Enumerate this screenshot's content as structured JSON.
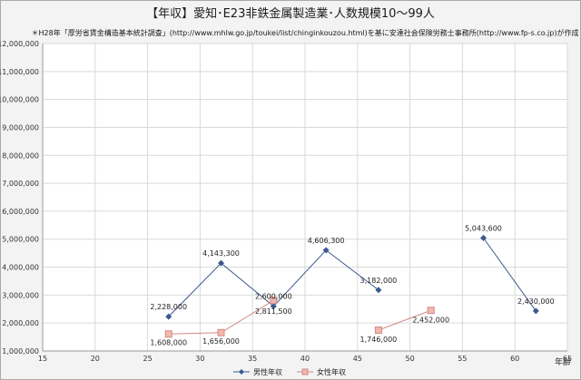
{
  "chart_data": {
    "type": "line",
    "title": "【年収】愛知･E23非鉄金属製造業･人数規模10～99人",
    "subtitle": "＊H28年「厚労省賃金構造基本統計調査」(http://www.mhlw.go.jp/toukei/list/chinginkouzou.html)を基に安達社会保険労務士事務所(http://www.fp-s.co.jp)が作成",
    "xlabel": "年齢",
    "ylabel": "",
    "xlim": [
      15,
      65
    ],
    "ylim": [
      1000000,
      12000000
    ],
    "x_ticks": [
      15,
      20,
      25,
      30,
      35,
      40,
      45,
      50,
      55,
      60,
      65
    ],
    "y_ticks": [
      1000000,
      2000000,
      3000000,
      4000000,
      5000000,
      6000000,
      7000000,
      8000000,
      9000000,
      10000000,
      11000000,
      12000000
    ],
    "y_tick_labels": [
      "1,000,000",
      "2,000,000",
      "3,000,000",
      "4,000,000",
      "5,000,000",
      "6,000,000",
      "7,000,000",
      "8,000,000",
      "9,000,000",
      "10,000,000",
      "11,000,000",
      "12,000,000"
    ],
    "grid": true,
    "legend_position": "bottom",
    "series": [
      {
        "name": "男性年収",
        "color": "#3a5a8c",
        "marker": "diamond",
        "segments": [
          [
            {
              "x": 27,
              "y": 2228000,
              "label": "2,228,000"
            },
            {
              "x": 32,
              "y": 4143300,
              "label": "4,143,300"
            },
            {
              "x": 37,
              "y": 2600000,
              "label": "2,600,000"
            },
            {
              "x": 42,
              "y": 4606300,
              "label": "4,606,300"
            },
            {
              "x": 47,
              "y": 3182000,
              "label": "3,182,000"
            }
          ],
          [
            {
              "x": 57,
              "y": 5043600,
              "label": "5,043,600"
            },
            {
              "x": 62,
              "y": 2430000,
              "label": "2,430,000"
            }
          ]
        ]
      },
      {
        "name": "女性年収",
        "color": "#d08a86",
        "marker": "square",
        "segments": [
          [
            {
              "x": 27,
              "y": 1608000,
              "label": "1,608,000"
            },
            {
              "x": 32,
              "y": 1656000,
              "label": "1,656,000"
            },
            {
              "x": 37,
              "y": 2811500,
              "label": "2,811,500"
            }
          ],
          [
            {
              "x": 47,
              "y": 1746000,
              "label": "1,746,000"
            },
            {
              "x": 52,
              "y": 2452000,
              "label": "2,452,000"
            }
          ]
        ]
      }
    ]
  }
}
